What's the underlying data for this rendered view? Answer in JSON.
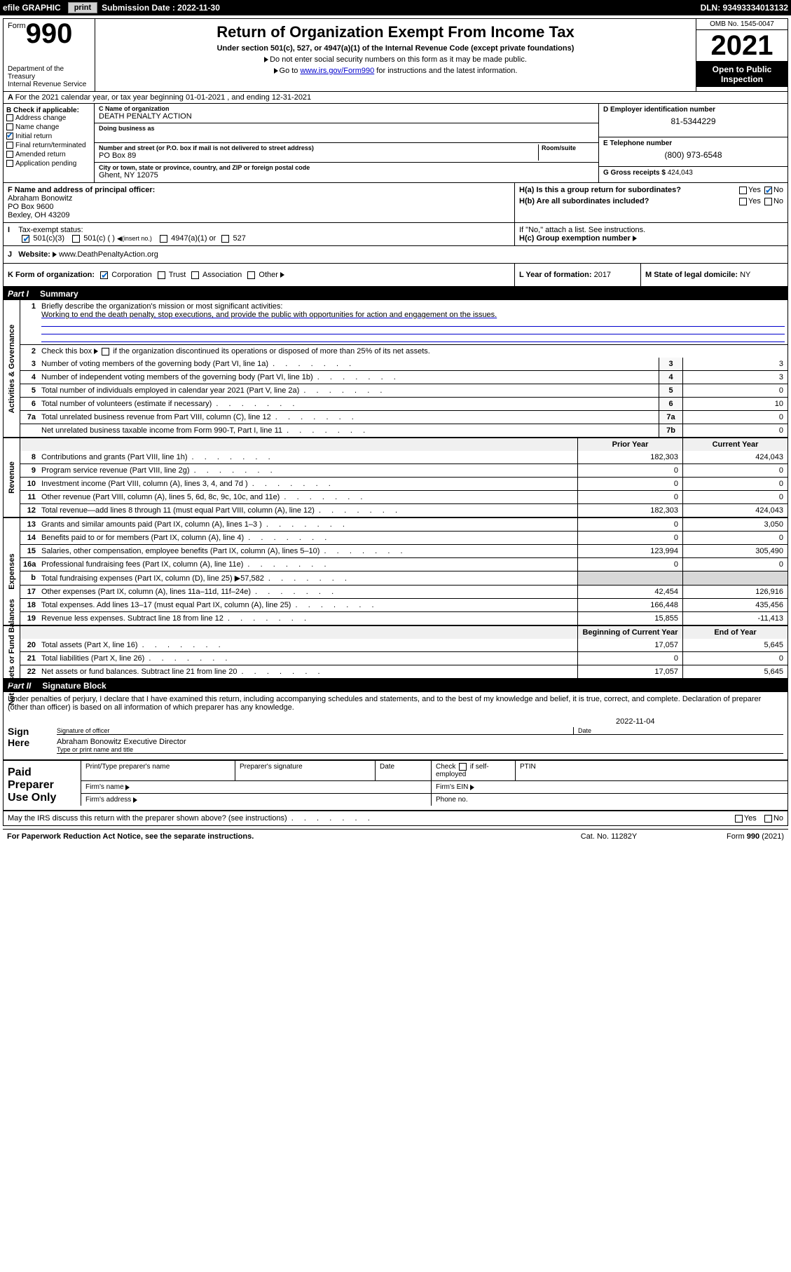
{
  "topbar": {
    "efile_label": "efile GRAPHIC",
    "print_btn": "print",
    "submission_label": "Submission Date : 2022-11-30",
    "dln": "DLN: 93493334013132"
  },
  "header": {
    "form_word": "Form",
    "form_number": "990",
    "title": "Return of Organization Exempt From Income Tax",
    "subtitle": "Under section 501(c), 527, or 4947(a)(1) of the Internal Revenue Code (except private foundations)",
    "note1": "Do not enter social security numbers on this form as it may be made public.",
    "note2_pre": "Go to ",
    "note2_link": "www.irs.gov/Form990",
    "note2_post": " for instructions and the latest information.",
    "dept": "Department of the Treasury\nInternal Revenue Service",
    "omb": "OMB No. 1545-0047",
    "year": "2021",
    "opi": "Open to Public Inspection"
  },
  "row_a": "For the 2021 calendar year, or tax year beginning 01-01-2021    , and ending 12-31-2021",
  "box_b": {
    "label": "B Check if applicable:",
    "items": [
      "Address change",
      "Name change",
      "Initial return",
      "Final return/terminated",
      "Amended return",
      "Application pending"
    ],
    "checked_index": 2
  },
  "box_c": {
    "name_label": "C Name of organization",
    "name": "DEATH PENALTY ACTION",
    "dba_label": "Doing business as",
    "dba": "",
    "street_label": "Number and street (or P.O. box if mail is not delivered to street address)",
    "room_label": "Room/suite",
    "street": "PO Box 89",
    "city_label": "City or town, state or province, country, and ZIP or foreign postal code",
    "city": "Ghent, NY  12075"
  },
  "box_d": {
    "label": "D Employer identification number",
    "val": "81-5344229"
  },
  "box_e": {
    "label": "E Telephone number",
    "val": "(800) 973-6548"
  },
  "box_g": {
    "label": "G Gross receipts $",
    "val": "424,043"
  },
  "box_f": {
    "label": "F  Name and address of principal officer:",
    "name": "Abraham Bonowitz",
    "addr1": "PO Box 9600",
    "addr2": "Bexley, OH  43209"
  },
  "box_h": {
    "ha": "H(a)  Is this a group return for subordinates?",
    "ha_yes": "Yes",
    "ha_no": "No",
    "hb": "H(b)  Are all subordinates included?",
    "hb_note": "If \"No,\" attach a list. See instructions.",
    "hc": "H(c)  Group exemption number"
  },
  "row_i": {
    "label": "Tax-exempt status:",
    "opt1": "501(c)(3)",
    "opt2": "501(c) (  )",
    "opt2_note": "(insert no.)",
    "opt3": "4947(a)(1) or",
    "opt4": "527"
  },
  "row_j": {
    "label": "Website:",
    "val": "www.DeathPenaltyAction.org"
  },
  "row_k": {
    "label": "K Form of organization:",
    "corp": "Corporation",
    "trust": "Trust",
    "assoc": "Association",
    "other": "Other"
  },
  "row_l": {
    "label": "L Year of formation:",
    "val": "2017"
  },
  "row_m": {
    "label": "M State of legal domicile:",
    "val": "NY"
  },
  "part1": {
    "label": "Part I",
    "title": "Summary"
  },
  "summary": {
    "side_labels": [
      "Activities & Governance",
      "Revenue",
      "Expenses",
      "Net Assets or Fund Balances"
    ],
    "line1_label": "Briefly describe the organization's mission or most significant activities:",
    "line1_text": "Working to end the death penalty, stop executions, and provide the public with opportunities for action and engagement on the issues.",
    "line2": "Check this box       if the organization discontinued its operations or disposed of more than 25% of its net assets.",
    "lines_ag": [
      {
        "n": "3",
        "d": "Number of voting members of the governing body (Part VI, line 1a)",
        "box": "3",
        "v": "3"
      },
      {
        "n": "4",
        "d": "Number of independent voting members of the governing body (Part VI, line 1b)",
        "box": "4",
        "v": "3"
      },
      {
        "n": "5",
        "d": "Total number of individuals employed in calendar year 2021 (Part V, line 2a)",
        "box": "5",
        "v": "0"
      },
      {
        "n": "6",
        "d": "Total number of volunteers (estimate if necessary)",
        "box": "6",
        "v": "10"
      },
      {
        "n": "7a",
        "d": "Total unrelated business revenue from Part VIII, column (C), line 12",
        "box": "7a",
        "v": "0"
      },
      {
        "n": "",
        "d": "Net unrelated business taxable income from Form 990-T, Part I, line 11",
        "box": "7b",
        "v": "0"
      }
    ],
    "hdr_prior": "Prior Year",
    "hdr_current": "Current Year",
    "lines_rev": [
      {
        "n": "8",
        "d": "Contributions and grants (Part VIII, line 1h)",
        "p": "182,303",
        "c": "424,043"
      },
      {
        "n": "9",
        "d": "Program service revenue (Part VIII, line 2g)",
        "p": "0",
        "c": "0"
      },
      {
        "n": "10",
        "d": "Investment income (Part VIII, column (A), lines 3, 4, and 7d )",
        "p": "0",
        "c": "0"
      },
      {
        "n": "11",
        "d": "Other revenue (Part VIII, column (A), lines 5, 6d, 8c, 9c, 10c, and 11e)",
        "p": "0",
        "c": "0"
      },
      {
        "n": "12",
        "d": "Total revenue—add lines 8 through 11 (must equal Part VIII, column (A), line 12)",
        "p": "182,303",
        "c": "424,043"
      }
    ],
    "lines_exp": [
      {
        "n": "13",
        "d": "Grants and similar amounts paid (Part IX, column (A), lines 1–3 )",
        "p": "0",
        "c": "3,050"
      },
      {
        "n": "14",
        "d": "Benefits paid to or for members (Part IX, column (A), line 4)",
        "p": "0",
        "c": "0"
      },
      {
        "n": "15",
        "d": "Salaries, other compensation, employee benefits (Part IX, column (A), lines 5–10)",
        "p": "123,994",
        "c": "305,490"
      },
      {
        "n": "16a",
        "d": "Professional fundraising fees (Part IX, column (A), line 11e)",
        "p": "0",
        "c": "0"
      },
      {
        "n": "b",
        "d": "Total fundraising expenses (Part IX, column (D), line 25) ▶57,582",
        "p": "",
        "c": "",
        "shade": true
      },
      {
        "n": "17",
        "d": "Other expenses (Part IX, column (A), lines 11a–11d, 11f–24e)",
        "p": "42,454",
        "c": "126,916"
      },
      {
        "n": "18",
        "d": "Total expenses. Add lines 13–17 (must equal Part IX, column (A), line 25)",
        "p": "166,448",
        "c": "435,456"
      },
      {
        "n": "19",
        "d": "Revenue less expenses. Subtract line 18 from line 12",
        "p": "15,855",
        "c": "-11,413"
      }
    ],
    "hdr_boy": "Beginning of Current Year",
    "hdr_eoy": "End of Year",
    "lines_bal": [
      {
        "n": "20",
        "d": "Total assets (Part X, line 16)",
        "p": "17,057",
        "c": "5,645"
      },
      {
        "n": "21",
        "d": "Total liabilities (Part X, line 26)",
        "p": "0",
        "c": "0"
      },
      {
        "n": "22",
        "d": "Net assets or fund balances. Subtract line 21 from line 20",
        "p": "17,057",
        "c": "5,645"
      }
    ]
  },
  "part2": {
    "label": "Part II",
    "title": "Signature Block"
  },
  "sig": {
    "intro": "Under penalties of perjury, I declare that I have examined this return, including accompanying schedules and statements, and to the best of my knowledge and belief, it is true, correct, and complete. Declaration of preparer (other than officer) is based on all information of which preparer has any knowledge.",
    "sign_here": "Sign Here",
    "sig_officer": "Signature of officer",
    "date_label": "Date",
    "date_val": "2022-11-04",
    "name_title_label": "Type or print name and title",
    "name_title": "Abraham Bonowitz  Executive Director"
  },
  "paid": {
    "label": "Paid Preparer Use Only",
    "h1": "Print/Type preparer's name",
    "h2": "Preparer's signature",
    "h3": "Date",
    "h4a": "Check",
    "h4b": "if self-employed",
    "h5": "PTIN",
    "firm_name": "Firm's name",
    "firm_ein": "Firm's EIN",
    "firm_addr": "Firm's address",
    "phone": "Phone no."
  },
  "footer": {
    "q": "May the IRS discuss this return with the preparer shown above? (see instructions)",
    "yes": "Yes",
    "no": "No",
    "pra": "For Paperwork Reduction Act Notice, see the separate instructions.",
    "cat": "Cat. No. 11282Y",
    "form": "Form 990 (2021)"
  }
}
